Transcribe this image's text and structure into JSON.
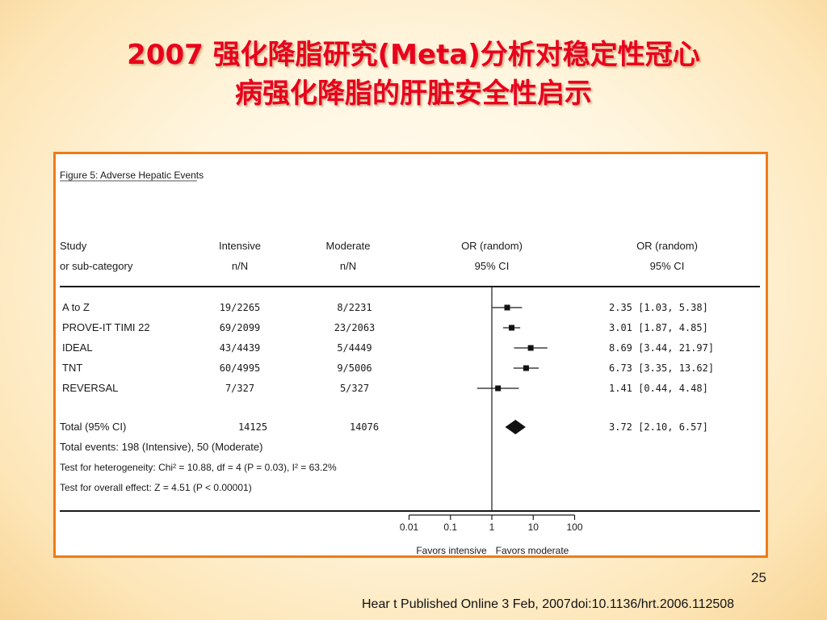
{
  "slide": {
    "title_line1": "2007 强化降脂研究(Meta)分析对稳定性冠心",
    "title_line2": "病强化降脂的肝脏安全性启示",
    "page_number": "25",
    "citation": "Hear t Published Online 3 Feb, 2007doi:10.1136/hrt.2006.112508"
  },
  "colors": {
    "title": "#e8001c",
    "frame_border": "#ee7b1a"
  },
  "chart_data": {
    "type": "forest",
    "title": "Figure 5: Adverse Hepatic Events",
    "headers": {
      "study_1": "Study",
      "study_2": "or sub-category",
      "intensive_1": "Intensive",
      "intensive_2": "n/N",
      "moderate_1": "Moderate",
      "moderate_2": "n/N",
      "plot_1": "OR (random)",
      "plot_2": "95% CI",
      "ci_1": "OR (random)",
      "ci_2": "95% CI"
    },
    "studies": [
      {
        "name": "A to Z",
        "intensive": "19/2265",
        "moderate": "8/2231",
        "or": 2.35,
        "lower": 1.03,
        "upper": 5.38,
        "ci_text": "2.35 [1.03, 5.38]"
      },
      {
        "name": "PROVE-IT TIMI 22",
        "intensive": "69/2099",
        "moderate": "23/2063",
        "or": 3.01,
        "lower": 1.87,
        "upper": 4.85,
        "ci_text": "3.01 [1.87, 4.85]"
      },
      {
        "name": "IDEAL",
        "intensive": "43/4439",
        "moderate": "5/4449",
        "or": 8.69,
        "lower": 3.44,
        "upper": 21.97,
        "ci_text": "8.69 [3.44, 21.97]"
      },
      {
        "name": "TNT",
        "intensive": "60/4995",
        "moderate": "9/5006",
        "or": 6.73,
        "lower": 3.35,
        "upper": 13.62,
        "ci_text": "6.73 [3.35, 13.62]"
      },
      {
        "name": "REVERSAL",
        "intensive": "7/327",
        "moderate": "5/327",
        "or": 1.41,
        "lower": 0.44,
        "upper": 4.48,
        "ci_text": "1.41 [0.44, 4.48]"
      }
    ],
    "total": {
      "name": "Total (95% CI)",
      "intensive": "14125",
      "moderate": "14076",
      "or": 3.72,
      "lower": 2.1,
      "upper": 6.57,
      "ci_text": "3.72 [2.10, 6.57]"
    },
    "stats": {
      "events": "Total events: 198 (Intensive), 50 (Moderate)",
      "heterogeneity": "Test for heterogeneity: Chi² = 10.88, df = 4 (P = 0.03), I² = 63.2%",
      "overall": "Test for overall effect: Z = 4.51 (P < 0.00001)"
    },
    "x_axis": {
      "scale": "log",
      "ticks": [
        0.01,
        0.1,
        1,
        10,
        100
      ],
      "tick_labels": [
        "0.01",
        "0.1",
        "1",
        "10",
        "100"
      ],
      "favors_left": "Favors intensive",
      "favors_right": "Favors moderate"
    }
  }
}
